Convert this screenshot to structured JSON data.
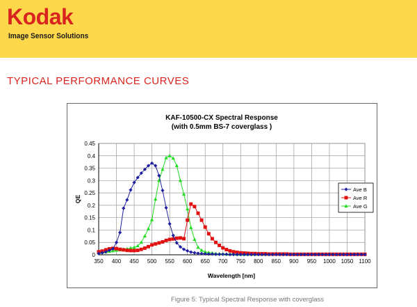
{
  "header": {
    "logo_text": "Kodak",
    "tagline": "Image Sensor Solutions",
    "brand_color": "#d8231f",
    "band_color": "#fcd84a"
  },
  "section_title": "TYPICAL PERFORMANCE  CURVES",
  "caption": "Figure 5: Typical Spectral Response with coverglass",
  "chart_data": {
    "type": "line",
    "title": "KAF-10500-CX Spectral Response",
    "subtitle": "(with 0.5mm BS-7 coverglass )",
    "xlabel": "Wavelength [nm]",
    "ylabel": "QE",
    "xlim": [
      350,
      1100
    ],
    "ylim": [
      0,
      0.45
    ],
    "x_ticks": [
      350,
      400,
      450,
      500,
      550,
      600,
      650,
      700,
      750,
      800,
      850,
      900,
      950,
      1000,
      1050,
      1100
    ],
    "y_ticks": [
      0,
      0.05,
      0.1,
      0.15,
      0.2,
      0.25,
      0.3,
      0.35,
      0.4,
      0.45
    ],
    "grid": true,
    "legend_position": "right",
    "series": [
      {
        "name": "Ave B",
        "color": "#1f1f9f",
        "marker": "diamond",
        "x": [
          350,
          360,
          370,
          380,
          390,
          400,
          410,
          420,
          430,
          440,
          450,
          460,
          470,
          480,
          490,
          500,
          510,
          520,
          530,
          540,
          550,
          560,
          570,
          580,
          590,
          600,
          610,
          620,
          630,
          640,
          650,
          660,
          670,
          680,
          690,
          700,
          710,
          720,
          730,
          740,
          750,
          760,
          770,
          780,
          790,
          800,
          810,
          820,
          830,
          840,
          850,
          860,
          870,
          880,
          890,
          900,
          910,
          920,
          930,
          940,
          950,
          960,
          970,
          980,
          990,
          1000,
          1010,
          1020,
          1030,
          1040,
          1050,
          1060,
          1070,
          1080,
          1090,
          1100
        ],
        "y": [
          0.005,
          0.008,
          0.012,
          0.018,
          0.024,
          0.05,
          0.09,
          0.188,
          0.222,
          0.262,
          0.292,
          0.312,
          0.33,
          0.345,
          0.36,
          0.37,
          0.36,
          0.32,
          0.26,
          0.19,
          0.125,
          0.078,
          0.048,
          0.032,
          0.022,
          0.016,
          0.011,
          0.008,
          0.006,
          0.005,
          0.004,
          0.003,
          0.003,
          0.002,
          0.002,
          0.002,
          0.002,
          0.001,
          0.001,
          0.001,
          0.001,
          0.001,
          0.001,
          0.001,
          0.001,
          0.001,
          0.001,
          0.001,
          0.001,
          0.001,
          0.001,
          0.001,
          0.001,
          0.001,
          0.001,
          0.001,
          0.001,
          0.001,
          0.001,
          0.001,
          0.001,
          0.001,
          0.001,
          0.001,
          0.001,
          0.001,
          0.001,
          0.001,
          0.001,
          0.001,
          0.001,
          0.001,
          0.001,
          0.001,
          0.001,
          0.001
        ]
      },
      {
        "name": "Ave R",
        "color": "#e01010",
        "marker": "square",
        "x": [
          350,
          360,
          370,
          380,
          390,
          400,
          410,
          420,
          430,
          440,
          450,
          460,
          470,
          480,
          490,
          500,
          510,
          520,
          530,
          540,
          550,
          560,
          570,
          580,
          590,
          600,
          610,
          620,
          630,
          640,
          650,
          660,
          670,
          680,
          690,
          700,
          710,
          720,
          730,
          740,
          750,
          760,
          770,
          780,
          790,
          800,
          810,
          820,
          830,
          840,
          850,
          860,
          870,
          880,
          890,
          900,
          910,
          920,
          930,
          940,
          950,
          960,
          970,
          980,
          990,
          1000,
          1010,
          1020,
          1030,
          1040,
          1050,
          1060,
          1070,
          1080,
          1090,
          1100
        ],
        "y": [
          0.012,
          0.015,
          0.02,
          0.024,
          0.026,
          0.025,
          0.022,
          0.02,
          0.018,
          0.017,
          0.017,
          0.018,
          0.022,
          0.027,
          0.033,
          0.04,
          0.044,
          0.048,
          0.052,
          0.058,
          0.062,
          0.064,
          0.067,
          0.068,
          0.065,
          0.14,
          0.205,
          0.195,
          0.168,
          0.14,
          0.112,
          0.085,
          0.065,
          0.05,
          0.038,
          0.028,
          0.021,
          0.016,
          0.012,
          0.01,
          0.008,
          0.007,
          0.006,
          0.005,
          0.005,
          0.004,
          0.004,
          0.004,
          0.003,
          0.003,
          0.003,
          0.003,
          0.003,
          0.003,
          0.002,
          0.002,
          0.002,
          0.002,
          0.002,
          0.002,
          0.002,
          0.002,
          0.002,
          0.002,
          0.002,
          0.002,
          0.002,
          0.002,
          0.002,
          0.002,
          0.002,
          0.002,
          0.002,
          0.002,
          0.002,
          0.002
        ]
      },
      {
        "name": "Ave G",
        "color": "#22dd22",
        "marker": "triangle",
        "x": [
          350,
          360,
          370,
          380,
          390,
          400,
          410,
          420,
          430,
          440,
          450,
          460,
          470,
          480,
          490,
          500,
          510,
          520,
          530,
          540,
          550,
          560,
          570,
          580,
          590,
          600,
          610,
          620,
          630,
          640,
          650,
          660,
          670,
          680,
          690,
          700,
          710,
          720,
          730,
          740,
          750,
          760,
          770,
          780,
          790,
          800,
          810,
          820,
          830,
          840,
          850,
          860,
          870,
          880,
          890,
          900,
          910,
          920,
          930,
          940,
          950,
          960,
          970,
          980,
          990,
          1000,
          1010,
          1020,
          1030,
          1040,
          1050,
          1060,
          1070,
          1080,
          1090,
          1100
        ],
        "y": [
          0.008,
          0.01,
          0.012,
          0.014,
          0.016,
          0.018,
          0.02,
          0.022,
          0.024,
          0.027,
          0.03,
          0.036,
          0.05,
          0.076,
          0.105,
          0.142,
          0.225,
          0.3,
          0.345,
          0.392,
          0.4,
          0.39,
          0.36,
          0.3,
          0.245,
          0.185,
          0.11,
          0.062,
          0.03,
          0.018,
          0.012,
          0.009,
          0.007,
          0.005,
          0.004,
          0.004,
          0.003,
          0.003,
          0.003,
          0.002,
          0.002,
          0.002,
          0.002,
          0.002,
          0.002,
          0.002,
          0.002,
          0.002,
          0.002,
          0.002,
          0.002,
          0.002,
          0.002,
          0.002,
          0.002,
          0.002,
          0.002,
          0.002,
          0.002,
          0.002,
          0.002,
          0.002,
          0.002,
          0.002,
          0.002,
          0.002,
          0.002,
          0.002,
          0.002,
          0.002,
          0.002,
          0.002,
          0.002,
          0.002,
          0.002,
          0.002
        ]
      }
    ]
  }
}
